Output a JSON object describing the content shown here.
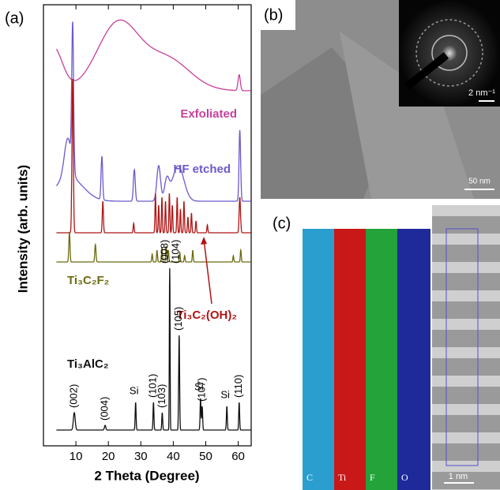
{
  "panel_a": {
    "label": "(a)",
    "x_label": "2 Theta (Degree)",
    "y_label": "Intensity (arb. units)",
    "xlim": [
      0,
      64
    ],
    "xticks": [
      10,
      20,
      30,
      40,
      50,
      60
    ],
    "patterns": [
      {
        "name": "Exfoliated",
        "color": "#c8409c",
        "peaks": [
          {
            "x": 3,
            "h": 55,
            "w": 4
          },
          {
            "x": 23,
            "h": 85,
            "w": 9
          },
          {
            "x": 38,
            "h": 40,
            "w": 10
          },
          {
            "x": 60.3,
            "h": 20,
            "w": 0.5
          }
        ]
      },
      {
        "name": "HF etched",
        "color": "#6a5acd",
        "peaks": [
          {
            "x": 8,
            "h": 30,
            "w": 6
          },
          {
            "x": 7.5,
            "h": 50,
            "w": 1.5
          },
          {
            "x": 9,
            "h": 180,
            "w": 0.4
          },
          {
            "x": 18,
            "h": 55,
            "w": 0.35
          },
          {
            "x": 28,
            "h": 40,
            "w": 0.4
          },
          {
            "x": 35.5,
            "h": 45,
            "w": 0.8
          },
          {
            "x": 38,
            "h": 25,
            "w": 1
          },
          {
            "x": 41.5,
            "h": 45,
            "w": 2.5
          },
          {
            "x": 60.5,
            "h": 90,
            "w": 0.35
          }
        ]
      },
      {
        "name": "Ti₃C₂(OH)₂",
        "color": "#b01515",
        "peaks": [
          {
            "x": 9,
            "h": 195,
            "w": 0.3
          },
          {
            "x": 18.3,
            "h": 40,
            "w": 0.25
          },
          {
            "x": 27.8,
            "h": 12,
            "w": 0.2
          },
          {
            "x": 34.5,
            "h": 50,
            "w": 0.2
          },
          {
            "x": 35.5,
            "h": 35,
            "w": 0.2
          },
          {
            "x": 36.5,
            "h": 45,
            "w": 0.2
          },
          {
            "x": 37.6,
            "h": 40,
            "w": 0.2
          },
          {
            "x": 38.8,
            "h": 50,
            "w": 0.2
          },
          {
            "x": 39.7,
            "h": 35,
            "w": 0.2
          },
          {
            "x": 41.2,
            "h": 45,
            "w": 0.2
          },
          {
            "x": 42.2,
            "h": 30,
            "w": 0.2
          },
          {
            "x": 43.3,
            "h": 40,
            "w": 0.2
          },
          {
            "x": 44.5,
            "h": 20,
            "w": 0.2
          },
          {
            "x": 45.6,
            "h": 25,
            "w": 0.2
          },
          {
            "x": 47,
            "h": 15,
            "w": 0.2
          },
          {
            "x": 50.5,
            "h": 10,
            "w": 0.2
          },
          {
            "x": 60.5,
            "h": 45,
            "w": 0.3
          }
        ]
      },
      {
        "name": "Ti₃C₂F₂",
        "color": "#6b6b10",
        "peaks": [
          {
            "x": 8,
            "h": 38,
            "w": 0.25
          },
          {
            "x": 16,
            "h": 22,
            "w": 0.25
          },
          {
            "x": 33.5,
            "h": 10,
            "w": 0.2
          },
          {
            "x": 35,
            "h": 15,
            "w": 0.2
          },
          {
            "x": 36.5,
            "h": 18,
            "w": 0.2
          },
          {
            "x": 37.8,
            "h": 20,
            "w": 0.2
          },
          {
            "x": 38.5,
            "h": 15,
            "w": 0.2
          },
          {
            "x": 42,
            "h": 12,
            "w": 0.2
          },
          {
            "x": 43.5,
            "h": 8,
            "w": 0.2
          },
          {
            "x": 46,
            "h": 15,
            "w": 0.2
          },
          {
            "x": 58.5,
            "h": 8,
            "w": 0.2
          },
          {
            "x": 60.8,
            "h": 15,
            "w": 0.2
          }
        ]
      },
      {
        "name": "Ti₃AlC₂",
        "color": "#111111",
        "peaks": [
          {
            "x": 9.5,
            "h": 22,
            "w": 0.4
          },
          {
            "x": 19,
            "h": 6,
            "w": 0.3
          },
          {
            "x": 28.4,
            "h": 35,
            "w": 0.2
          },
          {
            "x": 33.9,
            "h": 35,
            "w": 0.2
          },
          {
            "x": 36.6,
            "h": 22,
            "w": 0.2
          },
          {
            "x": 38.9,
            "h": 205,
            "w": 0.15
          },
          {
            "x": 41.8,
            "h": 120,
            "w": 0.2
          },
          {
            "x": 48.4,
            "h": 40,
            "w": 0.2
          },
          {
            "x": 48.9,
            "h": 30,
            "w": 0.2
          },
          {
            "x": 56.5,
            "h": 30,
            "w": 0.2
          },
          {
            "x": 60.3,
            "h": 35,
            "w": 0.2
          }
        ]
      }
    ],
    "peak_labels": [
      {
        "x": 9.5,
        "label": "(002)"
      },
      {
        "x": 19,
        "label": "(004)"
      },
      {
        "x": 28.4,
        "label": "Si"
      },
      {
        "x": 33.9,
        "label": "(101)"
      },
      {
        "x": 36.6,
        "label": "(103)"
      },
      {
        "x": 38.9,
        "label": "(008)"
      },
      {
        "x": 38.9,
        "label": "(104)"
      },
      {
        "x": 41.8,
        "label": "(105)"
      },
      {
        "x": 48.4,
        "label": "Si"
      },
      {
        "x": 48.9,
        "label": "(107)"
      },
      {
        "x": 56.5,
        "label": "Si"
      },
      {
        "x": 60.3,
        "label": "(110)"
      }
    ]
  },
  "panel_b": {
    "label": "(b)",
    "inset_scale": "2 nm⁻¹",
    "scale": "50 nm"
  },
  "panel_c": {
    "label": "(c)",
    "elements": [
      "C",
      "Ti",
      "F",
      "O"
    ],
    "scale": "1 nm"
  }
}
